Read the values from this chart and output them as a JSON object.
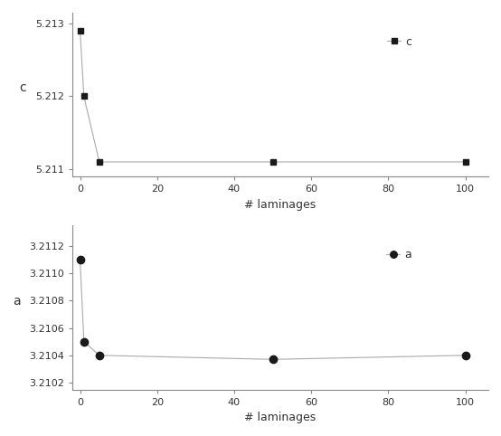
{
  "c_x": [
    0,
    1,
    5,
    50,
    100
  ],
  "c_y": [
    5.2129,
    5.212,
    5.2111,
    5.2111,
    5.2111
  ],
  "a_x": [
    0,
    1,
    5,
    50,
    100
  ],
  "a_y": [
    3.2111,
    3.2105,
    3.2104,
    3.21037,
    3.2104
  ],
  "c_yticks": [
    5.211,
    5.212,
    5.213
  ],
  "a_yticks": [
    3.2102,
    3.2104,
    3.2106,
    3.2108,
    3.211,
    3.2112
  ],
  "xticks": [
    0,
    20,
    40,
    60,
    80,
    100
  ],
  "xlabel": "# laminages",
  "c_ylabel": "c",
  "a_ylabel": "a",
  "c_legend": "c",
  "a_legend": "a",
  "line_color": "#aaaaaa",
  "marker_color": "#1a1a1a",
  "background_color": "#ffffff"
}
